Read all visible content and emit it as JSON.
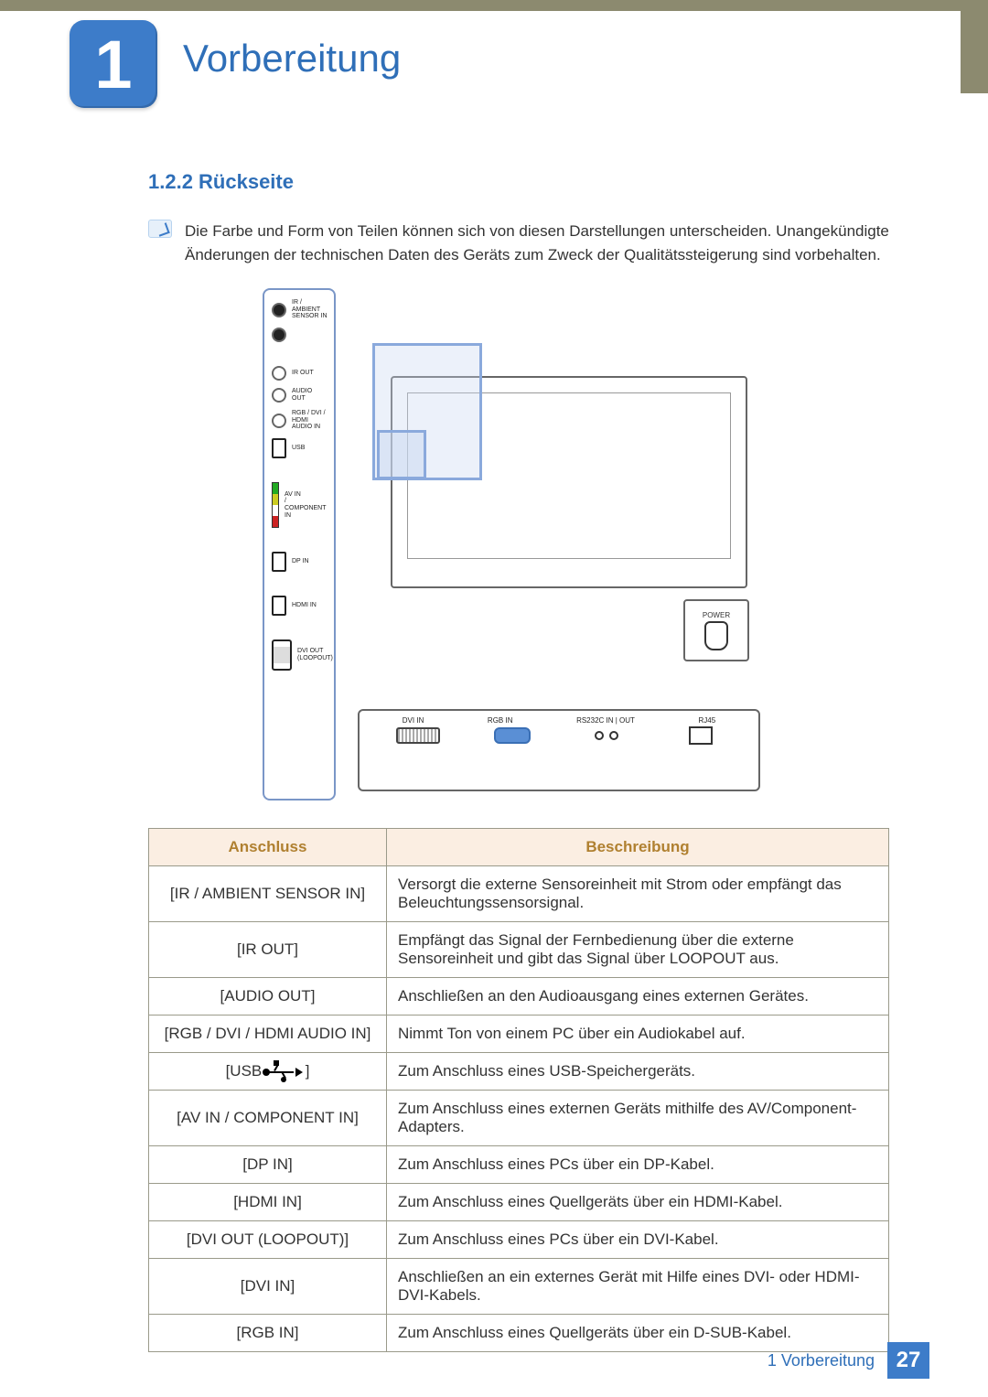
{
  "colors": {
    "accent_blue": "#3d7cc9",
    "heading_blue": "#2f6fb8",
    "top_bar": "#8c8a6f",
    "table_border": "#9a9a8a",
    "table_header_bg": "#fbeee2",
    "table_header_text": "#b08030",
    "body_text": "#333333",
    "diagram_border": "#7a96c7",
    "zoom_border": "#8aa9dc"
  },
  "typography": {
    "chapter_title_fontsize_pt": 32,
    "section_heading_fontsize_pt": 17,
    "body_fontsize_pt": 13,
    "table_fontsize_pt": 13
  },
  "header": {
    "chapter_number": "1",
    "chapter_title": "Vorbereitung"
  },
  "section": {
    "number_title": "1.2.2   Rückseite",
    "note": "Die Farbe und Form von Teilen können sich von diesen Darstellungen unterscheiden. Unangekündigte Änderungen der technischen Daten des Geräts zum Zweck der Qualitätssteigerung sind vorbehalten."
  },
  "diagram": {
    "side_ports": [
      "IR /\nAMBIENT\nSENSOR IN",
      "IR OUT",
      "AUDIO\nOUT",
      "RGB / DVI /\nHDMI\nAUDIO IN",
      "USB",
      "AV IN\n/\nCOMPONENT\nIN",
      "DP IN",
      "HDMI IN",
      "DVI OUT\n(LOOPOUT)"
    ],
    "bottom_ports": [
      "DVI IN",
      "RGB IN",
      "RS232C IN | OUT",
      "RJ45"
    ],
    "power_label": "POWER"
  },
  "table": {
    "headers": [
      "Anschluss",
      "Beschreibung"
    ],
    "rows": [
      {
        "c1": "[IR / AMBIENT SENSOR IN]",
        "c2": "Versorgt die externe Sensoreinheit mit Strom oder empfängt das Beleuchtungssensorsignal."
      },
      {
        "c1": "[IR OUT]",
        "c2": "Empfängt das Signal der Fernbedienung über die externe Sensoreinheit und gibt das Signal über LOOPOUT aus."
      },
      {
        "c1": "[AUDIO OUT]",
        "c2": "Anschließen an den Audioausgang eines externen Gerätes."
      },
      {
        "c1": "[RGB / DVI / HDMI AUDIO IN]",
        "c2": "Nimmt Ton von einem PC über ein Audiokabel auf."
      },
      {
        "c1": "[USB __USB__ ]",
        "c2": "Zum Anschluss eines USB-Speichergeräts."
      },
      {
        "c1": "[AV IN / COMPONENT IN]",
        "c2": "Zum Anschluss eines externen Geräts mithilfe des AV/Component-Adapters."
      },
      {
        "c1": "[DP IN]",
        "c2": "Zum Anschluss eines PCs über ein DP-Kabel."
      },
      {
        "c1": "[HDMI IN]",
        "c2": "Zum Anschluss eines Quellgeräts über ein HDMI-Kabel."
      },
      {
        "c1": "[DVI OUT (LOOPOUT)]",
        "c2": "Zum Anschluss eines PCs über ein DVI-Kabel."
      },
      {
        "c1": "[DVI IN]",
        "c2": "Anschließen an ein externes Gerät mit Hilfe eines DVI- oder HDMI-DVI-Kabels."
      },
      {
        "c1": "[RGB IN]",
        "c2": "Zum Anschluss eines Quellgeräts über ein D-SUB-Kabel."
      }
    ]
  },
  "footer": {
    "text": "1 Vorbereitung",
    "page": "27"
  }
}
